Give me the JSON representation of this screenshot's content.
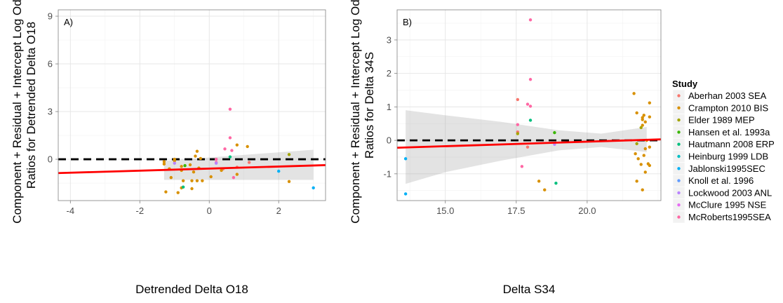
{
  "legend": {
    "title": "Study",
    "entries": [
      {
        "name": "Aberhan 2003 SEA",
        "color": "#F8766D"
      },
      {
        "name": "Crampton 2010 BIS",
        "color": "#D89000"
      },
      {
        "name": "Elder 1989 MEP",
        "color": "#A3A500"
      },
      {
        "name": "Hansen et al. 1993a",
        "color": "#39B600"
      },
      {
        "name": "Hautmann 2008 ERP",
        "color": "#00BF7D"
      },
      {
        "name": "Heinburg 1999 LDB",
        "color": "#00BFC4"
      },
      {
        "name": "Jablonski1995SEC",
        "color": "#00B0F6"
      },
      {
        "name": "Knoll et al. 1996",
        "color": "#619CFF"
      },
      {
        "name": "Lockwood 2003 ANL",
        "color": "#B983FF"
      },
      {
        "name": "McClure 1995 NSE",
        "color": "#E76BF3"
      },
      {
        "name": "McRoberts1995SEA",
        "color": "#FF67A4"
      }
    ]
  },
  "chart_data": [
    {
      "type": "scatter",
      "panel_label": "A)",
      "xlabel": "Detrended Delta O18",
      "ylabel": [
        "Component + Residual + Intercept Log Odds",
        "Ratios for Detrended Delta O18"
      ],
      "xlim": [
        -4.35,
        3.35
      ],
      "ylim": [
        -2.6,
        9.4
      ],
      "xticks": [
        -4,
        -2,
        0,
        2
      ],
      "yticks": [
        0,
        3,
        6,
        9
      ],
      "grid": true,
      "reference_line": {
        "y": 0,
        "style": "dashed"
      },
      "fit_line": {
        "x": [
          -4.35,
          3.35
        ],
        "y": [
          -0.87,
          -0.37
        ]
      },
      "ci_band": {
        "x": [
          -1.3,
          3.0
        ],
        "upper": [
          -0.1,
          0.6
        ],
        "lower": [
          -1.3,
          -1.3
        ]
      },
      "points": [
        {
          "x": 0.6,
          "y": 3.15,
          "study": "McRoberts1995SEA"
        },
        {
          "x": 0.6,
          "y": 1.35,
          "study": "McRoberts1995SEA"
        },
        {
          "x": 0.45,
          "y": 0.65,
          "study": "McRoberts1995SEA"
        },
        {
          "x": 0.65,
          "y": 0.55,
          "study": "McRoberts1995SEA"
        },
        {
          "x": 0.6,
          "y": 0.15,
          "study": "Hautmann 2008 ERP"
        },
        {
          "x": 0.2,
          "y": 0.0,
          "study": "McRoberts1995SEA"
        },
        {
          "x": 0.2,
          "y": -0.2,
          "study": "McRoberts1995SEA"
        },
        {
          "x": 0.7,
          "y": -1.15,
          "study": "McRoberts1995SEA"
        },
        {
          "x": 0.4,
          "y": -0.6,
          "study": "Aberhan 2003 SEA"
        },
        {
          "x": 0.8,
          "y": -0.5,
          "study": "Aberhan 2003 SEA"
        },
        {
          "x": 1.15,
          "y": -0.2,
          "study": "Aberhan 2003 SEA"
        },
        {
          "x": 1.1,
          "y": 0.8,
          "study": "Crampton 2010 BIS"
        },
        {
          "x": 0.8,
          "y": 0.9,
          "study": "Crampton 2010 BIS"
        },
        {
          "x": 0.8,
          "y": -0.95,
          "study": "Crampton 2010 BIS"
        },
        {
          "x": 0.35,
          "y": -0.7,
          "study": "Crampton 2010 BIS"
        },
        {
          "x": 0.05,
          "y": -1.1,
          "study": "Crampton 2010 BIS"
        },
        {
          "x": -0.35,
          "y": 0.5,
          "study": "Crampton 2010 BIS"
        },
        {
          "x": -0.4,
          "y": 0.2,
          "study": "Crampton 2010 BIS"
        },
        {
          "x": -0.25,
          "y": 0.05,
          "study": "Crampton 2010 BIS"
        },
        {
          "x": -0.55,
          "y": -0.35,
          "study": "Crampton 2010 BIS"
        },
        {
          "x": -0.3,
          "y": -0.55,
          "study": "Crampton 2010 BIS"
        },
        {
          "x": -0.45,
          "y": -0.8,
          "study": "Crampton 2010 BIS"
        },
        {
          "x": -0.5,
          "y": -1.35,
          "study": "Crampton 2010 BIS"
        },
        {
          "x": -0.35,
          "y": -1.35,
          "study": "Crampton 2010 BIS"
        },
        {
          "x": -0.2,
          "y": -1.35,
          "study": "Crampton 2010 BIS"
        },
        {
          "x": -0.75,
          "y": -1.35,
          "study": "Crampton 2010 BIS"
        },
        {
          "x": -0.8,
          "y": -0.45,
          "study": "Crampton 2010 BIS"
        },
        {
          "x": -0.8,
          "y": -0.7,
          "study": "Crampton 2010 BIS"
        },
        {
          "x": -1.0,
          "y": 0.0,
          "study": "Crampton 2010 BIS"
        },
        {
          "x": -1.0,
          "y": -0.1,
          "study": "Crampton 2010 BIS"
        },
        {
          "x": -1.15,
          "y": -0.6,
          "study": "Crampton 2010 BIS"
        },
        {
          "x": -1.3,
          "y": -0.15,
          "study": "Crampton 2010 BIS"
        },
        {
          "x": -1.3,
          "y": -0.3,
          "study": "Crampton 2010 BIS"
        },
        {
          "x": -1.25,
          "y": -2.05,
          "study": "Crampton 2010 BIS"
        },
        {
          "x": -0.9,
          "y": -2.1,
          "study": "Crampton 2010 BIS"
        },
        {
          "x": -0.8,
          "y": -1.8,
          "study": "Crampton 2010 BIS"
        },
        {
          "x": -0.5,
          "y": -1.85,
          "study": "Crampton 2010 BIS"
        },
        {
          "x": -1.1,
          "y": -1.15,
          "study": "Crampton 2010 BIS"
        },
        {
          "x": 2.3,
          "y": -1.4,
          "study": "Crampton 2010 BIS"
        },
        {
          "x": -0.7,
          "y": -0.4,
          "study": "Hansen et al. 1993a"
        },
        {
          "x": -0.75,
          "y": -1.75,
          "study": "Hautmann 2008 ERP"
        },
        {
          "x": 2.3,
          "y": 0.3,
          "study": "Elder 1989 MEP"
        },
        {
          "x": 2.0,
          "y": -0.75,
          "study": "Jablonski1995SEC"
        },
        {
          "x": 3.0,
          "y": -1.8,
          "study": "Jablonski1995SEC"
        },
        {
          "x": -1.0,
          "y": -0.25,
          "study": "Lockwood 2003 ANL"
        },
        {
          "x": 0.2,
          "y": -0.25,
          "study": "Lockwood 2003 ANL"
        }
      ]
    },
    {
      "type": "scatter",
      "panel_label": "B)",
      "xlabel": "Delta S34",
      "ylabel": [
        "Component + Residual + Intercept Log Odds",
        "Ratios for Delta 34S"
      ],
      "xlim": [
        13.3,
        22.6
      ],
      "ylim": [
        -1.8,
        3.9
      ],
      "xticks": [
        15.0,
        17.5,
        20.0
      ],
      "xtick_labels": [
        "15.0",
        "17.5",
        "20.0"
      ],
      "yticks": [
        -1,
        0,
        1,
        2,
        3
      ],
      "grid": true,
      "reference_line": {
        "y": 0,
        "style": "dashed"
      },
      "fit_line": {
        "x": [
          13.3,
          22.6
        ],
        "y": [
          -0.22,
          0.03
        ]
      },
      "ci_band": {
        "x": [
          13.6,
          15.0,
          17.0,
          19.0,
          20.5,
          22.1
        ],
        "upper": [
          0.9,
          0.75,
          0.55,
          0.3,
          0.2,
          0.4
        ],
        "lower": [
          -1.3,
          -0.95,
          -0.6,
          -0.3,
          -0.2,
          -0.35
        ]
      },
      "points": [
        {
          "x": 18.0,
          "y": 3.6,
          "study": "McRoberts1995SEA"
        },
        {
          "x": 18.0,
          "y": 1.82,
          "study": "McRoberts1995SEA"
        },
        {
          "x": 17.55,
          "y": 1.22,
          "study": "Aberhan 2003 SEA"
        },
        {
          "x": 17.9,
          "y": 1.08,
          "study": "McRoberts1995SEA"
        },
        {
          "x": 18.0,
          "y": 1.02,
          "study": "McRoberts1995SEA"
        },
        {
          "x": 18.0,
          "y": 0.6,
          "study": "Hautmann 2008 ERP"
        },
        {
          "x": 17.55,
          "y": 0.47,
          "study": "McRoberts1995SEA"
        },
        {
          "x": 17.55,
          "y": 0.25,
          "study": "Aberhan 2003 SEA"
        },
        {
          "x": 17.55,
          "y": 0.2,
          "study": "Elder 1989 MEP"
        },
        {
          "x": 17.9,
          "y": -0.2,
          "study": "Aberhan 2003 SEA"
        },
        {
          "x": 17.7,
          "y": -0.78,
          "study": "McRoberts1995SEA"
        },
        {
          "x": 18.85,
          "y": 0.23,
          "study": "Hansen et al. 1993a"
        },
        {
          "x": 18.85,
          "y": -0.12,
          "study": "Lockwood 2003 ANL"
        },
        {
          "x": 18.9,
          "y": -1.28,
          "study": "Hautmann 2008 ERP"
        },
        {
          "x": 18.3,
          "y": -1.22,
          "study": "Crampton 2010 BIS"
        },
        {
          "x": 18.5,
          "y": -1.48,
          "study": "Crampton 2010 BIS"
        },
        {
          "x": 13.6,
          "y": -0.55,
          "study": "Jablonski1995SEC"
        },
        {
          "x": 13.6,
          "y": -1.6,
          "study": "Jablonski1995SEC"
        },
        {
          "x": 21.65,
          "y": 1.4,
          "study": "Crampton 2010 BIS"
        },
        {
          "x": 22.2,
          "y": 1.12,
          "study": "Crampton 2010 BIS"
        },
        {
          "x": 21.75,
          "y": 0.82,
          "study": "Crampton 2010 BIS"
        },
        {
          "x": 22.0,
          "y": 0.75,
          "study": "Crampton 2010 BIS"
        },
        {
          "x": 22.2,
          "y": 0.7,
          "study": "Crampton 2010 BIS"
        },
        {
          "x": 21.95,
          "y": 0.68,
          "study": "Crampton 2010 BIS"
        },
        {
          "x": 21.95,
          "y": 0.62,
          "study": "Crampton 2010 BIS"
        },
        {
          "x": 22.05,
          "y": 0.55,
          "study": "Crampton 2010 BIS"
        },
        {
          "x": 21.95,
          "y": 0.45,
          "study": "Crampton 2010 BIS"
        },
        {
          "x": 21.9,
          "y": 0.38,
          "study": "Elder 1989 MEP"
        },
        {
          "x": 22.1,
          "y": 0.0,
          "study": "Crampton 2010 BIS"
        },
        {
          "x": 21.75,
          "y": -0.1,
          "study": "Elder 1989 MEP"
        },
        {
          "x": 22.2,
          "y": -0.2,
          "study": "Crampton 2010 BIS"
        },
        {
          "x": 21.7,
          "y": -0.4,
          "study": "Crampton 2010 BIS"
        },
        {
          "x": 22.0,
          "y": -0.45,
          "study": "Crampton 2010 BIS"
        },
        {
          "x": 21.8,
          "y": -0.55,
          "study": "Crampton 2010 BIS"
        },
        {
          "x": 22.15,
          "y": -0.7,
          "study": "Crampton 2010 BIS"
        },
        {
          "x": 21.9,
          "y": -0.72,
          "study": "Crampton 2010 BIS"
        },
        {
          "x": 22.2,
          "y": -0.75,
          "study": "Crampton 2010 BIS"
        },
        {
          "x": 22.05,
          "y": -0.95,
          "study": "Crampton 2010 BIS"
        },
        {
          "x": 21.75,
          "y": -1.22,
          "study": "Crampton 2010 BIS"
        },
        {
          "x": 21.95,
          "y": -1.48,
          "study": "Crampton 2010 BIS"
        },
        {
          "x": 22.05,
          "y": -0.25,
          "study": "Crampton 2010 BIS"
        }
      ]
    }
  ]
}
